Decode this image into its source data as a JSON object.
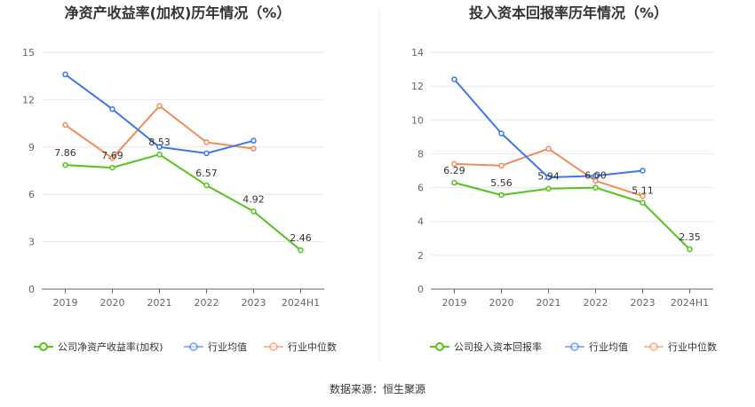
{
  "source": "数据来源：恒生聚源",
  "chart_data": [
    {
      "type": "line",
      "title": "净资产收益率(加权)历年情况（%）",
      "categories": [
        "2019",
        "2020",
        "2021",
        "2022",
        "2023",
        "2024H1"
      ],
      "ylim": [
        0,
        15
      ],
      "yticks": [
        0,
        3,
        6,
        9,
        12,
        15
      ],
      "grid": true,
      "legend_position": "bottom",
      "series": [
        {
          "name": "公司净资产收益率(加权)",
          "color": "#52c41a",
          "values": [
            7.86,
            7.69,
            8.53,
            6.57,
            4.92,
            2.46
          ],
          "labels": [
            "7.86",
            "7.69",
            "8.53",
            "6.57",
            "4.92",
            "2.46"
          ]
        },
        {
          "name": "行业均值",
          "color": "#3b78e7",
          "values": [
            13.6,
            11.4,
            9.0,
            8.6,
            9.4,
            null
          ]
        },
        {
          "name": "行业中位数",
          "color": "#f08c5c",
          "values": [
            10.4,
            8.3,
            11.6,
            9.3,
            8.9,
            null
          ]
        }
      ]
    },
    {
      "type": "line",
      "title": "投入资本回报率历年情况（%）",
      "categories": [
        "2019",
        "2020",
        "2021",
        "2022",
        "2023",
        "2024H1"
      ],
      "ylim": [
        0,
        14
      ],
      "yticks": [
        0,
        2,
        4,
        6,
        8,
        10,
        12,
        14
      ],
      "grid": true,
      "legend_position": "bottom",
      "series": [
        {
          "name": "公司投入资本回报率",
          "color": "#52c41a",
          "values": [
            6.29,
            5.56,
            5.94,
            6.0,
            5.11,
            2.35
          ],
          "labels": [
            "6.29",
            "5.56",
            "5.94",
            "6.00",
            "5.11",
            "2.35"
          ]
        },
        {
          "name": "行业均值",
          "color": "#3b78e7",
          "values": [
            12.4,
            9.2,
            6.6,
            6.7,
            7.0,
            null
          ]
        },
        {
          "name": "行业中位数",
          "color": "#f08c5c",
          "values": [
            7.4,
            7.3,
            8.3,
            6.4,
            5.5,
            null
          ]
        }
      ]
    }
  ]
}
